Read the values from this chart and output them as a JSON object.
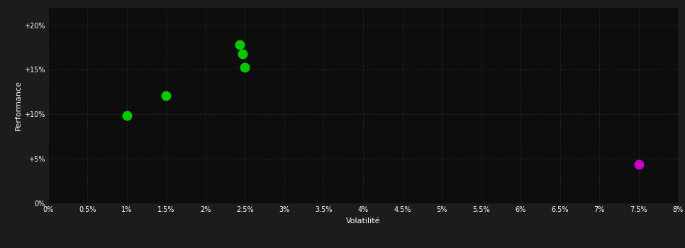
{
  "background_color": "#1c1c1c",
  "plot_bg_color": "#0d0d0d",
  "grid_color": "#404040",
  "text_color": "#ffffff",
  "xlabel": "Volatilité",
  "ylabel": "Performance",
  "xlim": [
    0,
    0.08
  ],
  "ylim": [
    0,
    0.22
  ],
  "xtick_values": [
    0.0,
    0.005,
    0.01,
    0.015,
    0.02,
    0.025,
    0.03,
    0.035,
    0.04,
    0.045,
    0.05,
    0.055,
    0.06,
    0.065,
    0.07,
    0.075,
    0.08
  ],
  "xtick_labels": [
    "0%",
    "0.5%",
    "1%",
    "1.5%",
    "2%",
    "2.5%",
    "3%",
    "3.5%",
    "4%",
    "4.5%",
    "5%",
    "5.5%",
    "6%",
    "6.5%",
    "7%",
    "7.5%",
    "8%"
  ],
  "ytick_values": [
    0,
    0.05,
    0.1,
    0.15,
    0.2
  ],
  "ytick_labels": [
    "0%",
    "+5%",
    "+10%",
    "+15%",
    "+20%"
  ],
  "green_points": [
    [
      0.01,
      0.099
    ],
    [
      0.015,
      0.121
    ],
    [
      0.0243,
      0.178
    ],
    [
      0.0247,
      0.168
    ],
    [
      0.025,
      0.153
    ]
  ],
  "magenta_points": [
    [
      0.075,
      0.044
    ]
  ],
  "green_color": "#00cc00",
  "magenta_color": "#cc00cc",
  "marker_size": 5
}
